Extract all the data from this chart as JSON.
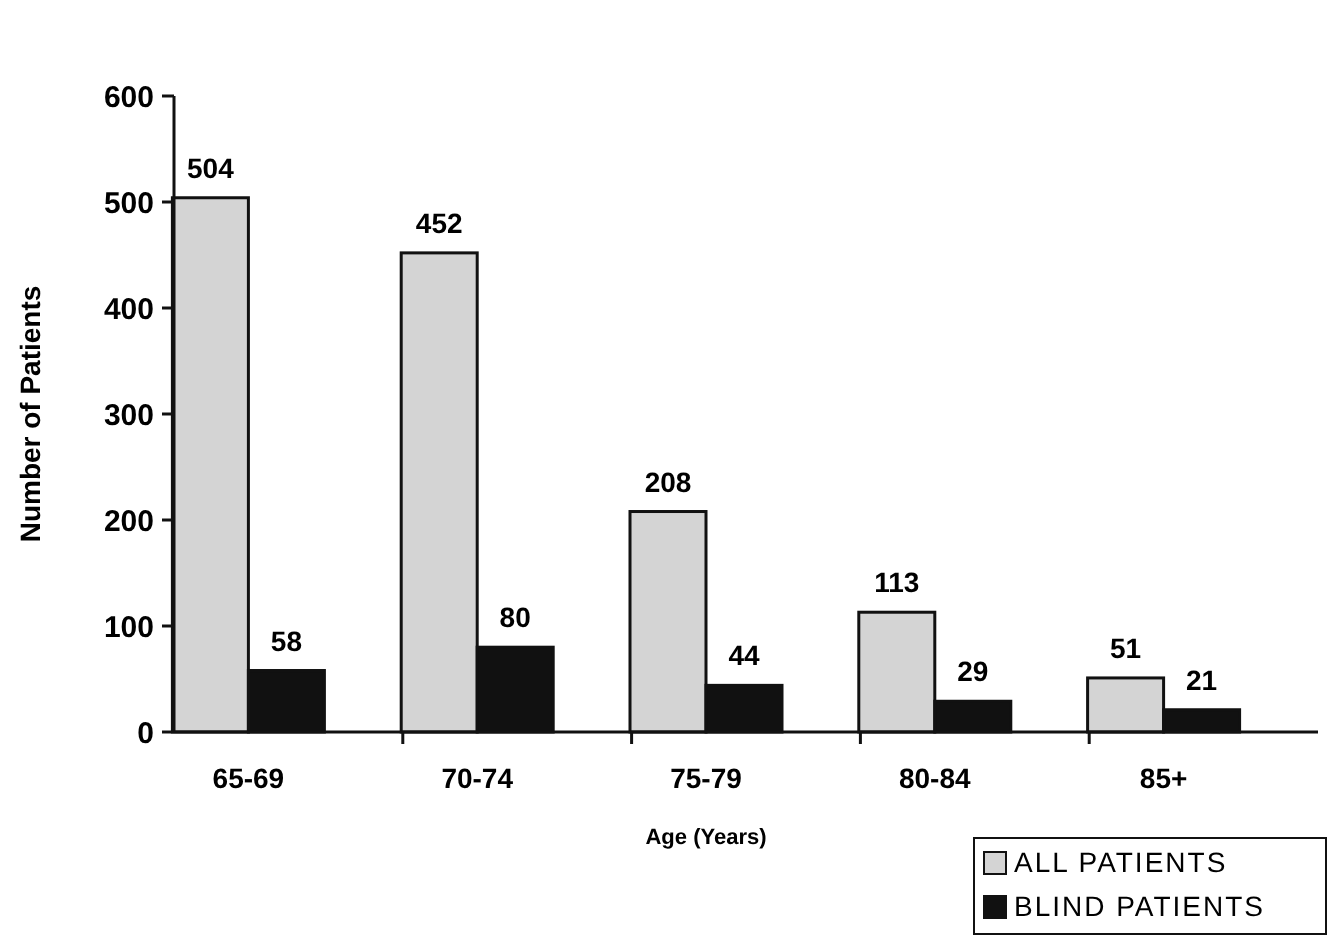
{
  "chart_data": {
    "type": "bar",
    "xlabel": "Age (Years)",
    "ylabel": "Number of Patients",
    "categories": [
      "65-69",
      "70-74",
      "75-79",
      "80-84",
      "85+"
    ],
    "series": [
      {
        "name": "ALL PATIENTS",
        "color": "#d4d4d4",
        "values": [
          504,
          452,
          208,
          113,
          51
        ]
      },
      {
        "name": "BLIND PATIENTS",
        "color": "#111111",
        "values": [
          58,
          80,
          44,
          29,
          21
        ]
      }
    ],
    "ylim": [
      0,
      600
    ],
    "yticks": [
      0,
      100,
      200,
      300,
      400,
      500,
      600
    ],
    "data_labels": true,
    "legend": "bottom right",
    "grid": false
  }
}
